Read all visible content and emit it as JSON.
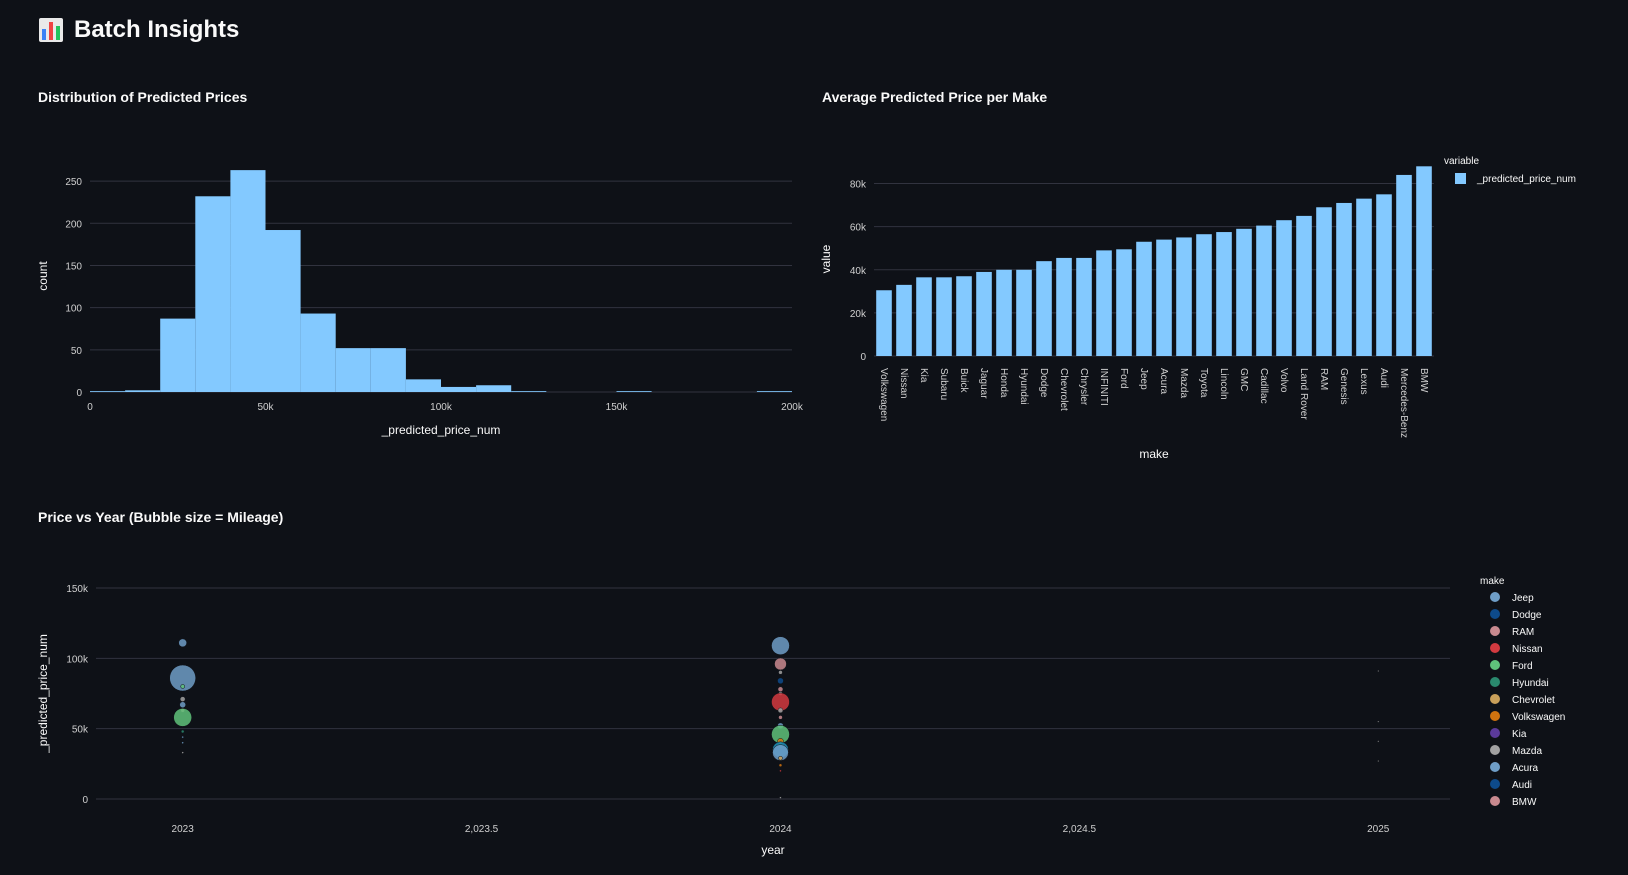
{
  "page": {
    "title": "Batch Insights",
    "icon": "bar-chart-icon"
  },
  "colors": {
    "background": "#0e1117",
    "bar": "#83c9ff",
    "grid": "#31333f",
    "text": "#fafafa",
    "tick": "#d0d0d0"
  },
  "chart_data": [
    {
      "id": "histogram",
      "type": "bar",
      "title": "Distribution of Predicted Prices",
      "xlabel": "_predicted_price_num",
      "ylabel": "count",
      "xlim": [
        0,
        200000
      ],
      "ylim": [
        0,
        275
      ],
      "xticks": [
        0,
        50000,
        100000,
        150000,
        200000
      ],
      "xtick_labels": [
        "0",
        "50k",
        "100k",
        "150k",
        "200k"
      ],
      "yticks": [
        0,
        50,
        100,
        150,
        200,
        250
      ],
      "ytick_labels": [
        "0",
        "50",
        "100",
        "150",
        "200",
        "250"
      ],
      "bin_width": 10000,
      "bins": [
        {
          "x0": 0,
          "count": 1
        },
        {
          "x0": 10000,
          "count": 2
        },
        {
          "x0": 20000,
          "count": 87
        },
        {
          "x0": 30000,
          "count": 232
        },
        {
          "x0": 40000,
          "count": 263
        },
        {
          "x0": 50000,
          "count": 192
        },
        {
          "x0": 60000,
          "count": 93
        },
        {
          "x0": 70000,
          "count": 52
        },
        {
          "x0": 80000,
          "count": 52
        },
        {
          "x0": 90000,
          "count": 15
        },
        {
          "x0": 100000,
          "count": 6
        },
        {
          "x0": 110000,
          "count": 8
        },
        {
          "x0": 120000,
          "count": 1
        },
        {
          "x0": 150000,
          "count": 1
        },
        {
          "x0": 190000,
          "count": 1
        }
      ],
      "grid": true
    },
    {
      "id": "avg-price",
      "type": "bar",
      "title": "Average Predicted Price per Make",
      "xlabel": "make",
      "ylabel": "value",
      "ylim": [
        0,
        90000
      ],
      "yticks": [
        0,
        20000,
        40000,
        60000,
        80000
      ],
      "ytick_labels": [
        "0",
        "20k",
        "40k",
        "60k",
        "80k"
      ],
      "legend_title": "variable",
      "legend_placement": "top-right",
      "series": [
        {
          "name": "_predicted_price_num",
          "color": "#83c9ff",
          "values": [
            30500,
            33000,
            36500,
            36500,
            37000,
            39000,
            40000,
            40000,
            44000,
            45500,
            45500,
            49000,
            49500,
            53000,
            54000,
            55000,
            56500,
            57500,
            59000,
            60500,
            63000,
            65000,
            69000,
            71000,
            73000,
            75000,
            84000,
            88000
          ]
        }
      ],
      "categories": [
        "Volkswagen",
        "Nissan",
        "Kia",
        "Subaru",
        "Buick",
        "Jaguar",
        "Honda",
        "Hyundai",
        "Dodge",
        "Chevrolet",
        "Chrysler",
        "INFINITI",
        "Ford",
        "Jeep",
        "Acura",
        "Mazda",
        "Toyota",
        "Lincoln",
        "GMC",
        "Cadillac",
        "Volvo",
        "Land Rover",
        "RAM",
        "Genesis",
        "Lexus",
        "Audi",
        "Mercedes-Benz",
        "BMW"
      ],
      "grid": true
    },
    {
      "id": "bubble",
      "type": "scatter",
      "title": "Price vs Year (Bubble size = Mileage)",
      "xlabel": "year",
      "ylabel": "_predicted_price_num",
      "xlim": [
        2022.855,
        2025.12
      ],
      "ylim": [
        0,
        150000
      ],
      "xticks": [
        2023,
        2023.5,
        2024,
        2024.5,
        2025
      ],
      "xtick_labels": [
        "2023",
        "2,023.5",
        "2024",
        "2,024.5",
        "2025"
      ],
      "yticks": [
        0,
        50000,
        100000,
        150000
      ],
      "ytick_labels": [
        "0",
        "50k",
        "100k",
        "150k"
      ],
      "legend_title": "make",
      "legend_placement": "right",
      "legend": [
        {
          "name": "Jeep",
          "color": "#6f9ec7"
        },
        {
          "name": "Dodge",
          "color": "#0d4a8a"
        },
        {
          "name": "RAM",
          "color": "#c98a8f"
        },
        {
          "name": "Nissan",
          "color": "#d23a40"
        },
        {
          "name": "Ford",
          "color": "#5fc27a"
        },
        {
          "name": "Hyundai",
          "color": "#2a8a6e"
        },
        {
          "name": "Chevrolet",
          "color": "#c9a05a"
        },
        {
          "name": "Volkswagen",
          "color": "#d0730f"
        },
        {
          "name": "Kia",
          "color": "#5b3a9a"
        },
        {
          "name": "Mazda",
          "color": "#a2a2a2"
        },
        {
          "name": "Acura",
          "color": "#6f9ec7"
        },
        {
          "name": "Audi",
          "color": "#0d4a8a"
        },
        {
          "name": "BMW",
          "color": "#c98a8f"
        }
      ],
      "points": [
        {
          "x": 2023,
          "y": 111000,
          "size": 4,
          "color": "#6f9ec7"
        },
        {
          "x": 2023,
          "y": 86000,
          "size": 13,
          "color": "#6f9ec7"
        },
        {
          "x": 2023,
          "y": 80000,
          "size": 2,
          "color": "#5fc27a"
        },
        {
          "x": 2023,
          "y": 71000,
          "size": 2.5,
          "color": "#a2a2a2"
        },
        {
          "x": 2023,
          "y": 67000,
          "size": 3,
          "color": "#6f9ec7"
        },
        {
          "x": 2023,
          "y": 63000,
          "size": 2,
          "color": "#c98a8f"
        },
        {
          "x": 2023,
          "y": 58000,
          "size": 9,
          "color": "#5fc27a"
        },
        {
          "x": 2023,
          "y": 48000,
          "size": 1.5,
          "color": "#2a8a6e"
        },
        {
          "x": 2023,
          "y": 44000,
          "size": 1,
          "color": "#6f9ec7"
        },
        {
          "x": 2023,
          "y": 40000,
          "size": 1,
          "color": "#6f9ec7"
        },
        {
          "x": 2023,
          "y": 33000,
          "size": 1,
          "color": "#a2a2a2"
        },
        {
          "x": 2024,
          "y": 109000,
          "size": 9,
          "color": "#6f9ec7"
        },
        {
          "x": 2024,
          "y": 96000,
          "size": 6,
          "color": "#c98a8f"
        },
        {
          "x": 2024,
          "y": 90000,
          "size": 2,
          "color": "#a2a2a2"
        },
        {
          "x": 2024,
          "y": 84000,
          "size": 3,
          "color": "#0d4a8a"
        },
        {
          "x": 2024,
          "y": 78000,
          "size": 2.5,
          "color": "#c98a8f"
        },
        {
          "x": 2024,
          "y": 75000,
          "size": 2,
          "color": "#a2a2a2"
        },
        {
          "x": 2024,
          "y": 69000,
          "size": 9,
          "color": "#d23a40"
        },
        {
          "x": 2024,
          "y": 63000,
          "size": 2.5,
          "color": "#a2a2a2"
        },
        {
          "x": 2024,
          "y": 58000,
          "size": 2,
          "color": "#c98a8f"
        },
        {
          "x": 2024,
          "y": 52000,
          "size": 3,
          "color": "#6f9ec7"
        },
        {
          "x": 2024,
          "y": 46000,
          "size": 9,
          "color": "#5fc27a"
        },
        {
          "x": 2024,
          "y": 41000,
          "size": 3,
          "color": "#d0730f"
        },
        {
          "x": 2024,
          "y": 38000,
          "size": 3,
          "color": "#2a8a6e"
        },
        {
          "x": 2024,
          "y": 35000,
          "size": 8,
          "color": "#1f8fb8"
        },
        {
          "x": 2024,
          "y": 33000,
          "size": 8,
          "color": "#6f9ec7"
        },
        {
          "x": 2024,
          "y": 29000,
          "size": 2,
          "color": "#c9a05a"
        },
        {
          "x": 2024,
          "y": 24000,
          "size": 1.5,
          "color": "#d0730f"
        },
        {
          "x": 2024,
          "y": 20000,
          "size": 1,
          "color": "#d23a40"
        },
        {
          "x": 2024,
          "y": 1000,
          "size": 1,
          "color": "#a2a2a2"
        },
        {
          "x": 2025,
          "y": 91000,
          "size": 0.8,
          "color": "#a2a2a2"
        },
        {
          "x": 2025,
          "y": 55000,
          "size": 0.8,
          "color": "#a2a2a2"
        },
        {
          "x": 2025,
          "y": 41000,
          "size": 0.8,
          "color": "#a2a2a2"
        },
        {
          "x": 2025,
          "y": 27000,
          "size": 0.8,
          "color": "#a2a2a2"
        }
      ],
      "grid": true
    }
  ]
}
